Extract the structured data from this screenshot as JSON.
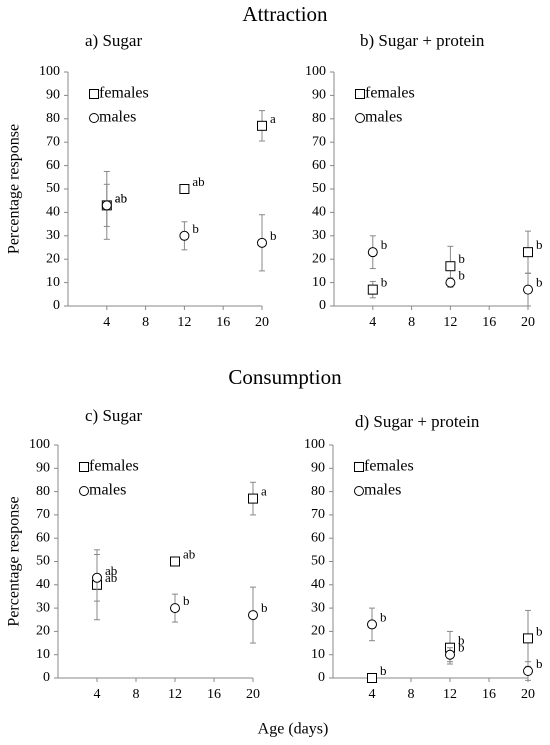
{
  "sections": [
    "Attraction",
    "Consumption"
  ],
  "xlabel": "Age (days)",
  "chart_data": [
    {
      "type": "scatter",
      "title": "a) Sugar",
      "ylabel": "Percentage response",
      "xlim": [
        0,
        20
      ],
      "xticks": [
        4,
        8,
        12,
        16,
        20
      ],
      "ylim": [
        0,
        100
      ],
      "yticks": [
        0,
        10,
        20,
        30,
        40,
        50,
        60,
        70,
        80,
        90,
        100
      ],
      "legend": "upper left",
      "series": [
        {
          "name": "females",
          "marker": "square",
          "x": [
            4,
            12,
            20
          ],
          "values": [
            43,
            50,
            77
          ],
          "errors": [
            9,
            0,
            6.5
          ],
          "letters": [
            "ab",
            "ab",
            "a"
          ]
        },
        {
          "name": "males",
          "marker": "circle",
          "x": [
            4,
            12,
            20
          ],
          "values": [
            43,
            30,
            27
          ],
          "errors": [
            14.5,
            6,
            12
          ],
          "letters": [
            "ab",
            "b",
            "b"
          ]
        }
      ]
    },
    {
      "type": "scatter",
      "title": "b) Sugar + protein",
      "xlim": [
        0,
        20
      ],
      "xticks": [
        4,
        8,
        12,
        16,
        20
      ],
      "ylim": [
        0,
        100
      ],
      "yticks": [
        0,
        10,
        20,
        30,
        40,
        50,
        60,
        70,
        80,
        90,
        100
      ],
      "legend": "upper left",
      "series": [
        {
          "name": "females",
          "marker": "square",
          "x": [
            4,
            12,
            20
          ],
          "values": [
            7,
            17,
            23
          ],
          "errors": [
            3.5,
            8.5,
            9
          ],
          "letters": [
            "b",
            "b",
            "b"
          ]
        },
        {
          "name": "males",
          "marker": "circle",
          "x": [
            4,
            12,
            20
          ],
          "values": [
            23,
            10,
            7
          ],
          "errors": [
            7,
            2,
            7
          ],
          "letters": [
            "b",
            "b",
            "b"
          ]
        }
      ]
    },
    {
      "type": "scatter",
      "title": "c) Sugar",
      "ylabel": "Percentage response",
      "xlim": [
        0,
        20
      ],
      "xticks": [
        4,
        8,
        12,
        16,
        20
      ],
      "ylim": [
        0,
        100
      ],
      "yticks": [
        0,
        10,
        20,
        30,
        40,
        50,
        60,
        70,
        80,
        90,
        100
      ],
      "legend": "upper left",
      "series": [
        {
          "name": "females",
          "marker": "square",
          "x": [
            4,
            12,
            20
          ],
          "values": [
            40,
            50,
            77
          ],
          "errors": [
            15,
            0,
            7
          ],
          "letters": [
            "ab",
            "ab",
            "a"
          ]
        },
        {
          "name": "males",
          "marker": "circle",
          "x": [
            4,
            12,
            20
          ],
          "values": [
            43,
            30,
            27
          ],
          "errors": [
            10,
            6,
            12
          ],
          "letters": [
            "ab",
            "b",
            "b"
          ]
        }
      ]
    },
    {
      "type": "scatter",
      "title": "d) Sugar + protein",
      "xlim": [
        0,
        20
      ],
      "xticks": [
        4,
        8,
        12,
        16,
        20
      ],
      "ylim": [
        0,
        100
      ],
      "yticks": [
        0,
        10,
        20,
        30,
        40,
        50,
        60,
        70,
        80,
        90,
        100
      ],
      "legend": "upper left",
      "series": [
        {
          "name": "females",
          "marker": "square",
          "x": [
            4,
            12,
            20
          ],
          "values": [
            0,
            13,
            17
          ],
          "errors": [
            0,
            7,
            12
          ],
          "letters": [
            "b",
            "b",
            "b"
          ]
        },
        {
          "name": "males",
          "marker": "circle",
          "x": [
            4,
            12,
            20
          ],
          "values": [
            23,
            10,
            3
          ],
          "errors": [
            7,
            3,
            4
          ],
          "letters": [
            "b",
            "b",
            "b"
          ]
        }
      ]
    }
  ]
}
